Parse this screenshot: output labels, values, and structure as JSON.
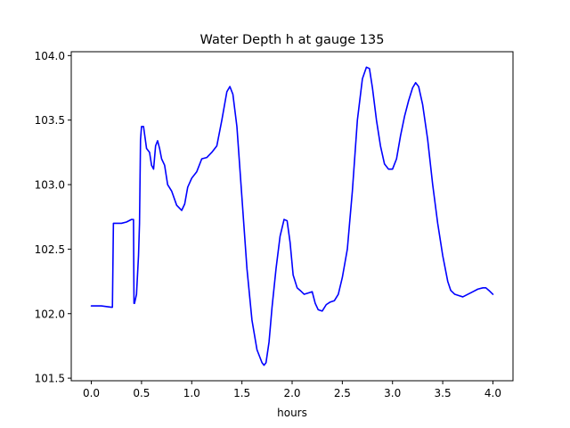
{
  "chart_data": {
    "type": "line",
    "title": "Water Depth h at gauge 135",
    "xlabel": "hours",
    "ylabel": "",
    "xlim": [
      -0.2,
      4.2
    ],
    "ylim": [
      101.48,
      104.03
    ],
    "xticks": [
      0.0,
      0.5,
      1.0,
      1.5,
      2.0,
      2.5,
      3.0,
      3.5,
      4.0
    ],
    "xtick_labels": [
      "0.0",
      "0.5",
      "1.0",
      "1.5",
      "2.0",
      "2.5",
      "3.0",
      "3.5",
      "4.0"
    ],
    "yticks": [
      101.5,
      102.0,
      102.5,
      103.0,
      103.5,
      104.0
    ],
    "ytick_labels": [
      "101.5",
      "102.0",
      "102.5",
      "103.0",
      "103.5",
      "104.0"
    ],
    "grid": false,
    "line_color": "#0000ff",
    "series": [
      {
        "x": [
          0.0,
          0.1,
          0.15,
          0.2,
          0.21,
          0.22,
          0.3,
          0.35,
          0.4,
          0.42,
          0.425,
          0.43,
          0.45,
          0.47,
          0.48,
          0.49,
          0.5,
          0.52,
          0.55,
          0.58,
          0.6,
          0.62,
          0.64,
          0.66,
          0.68,
          0.7,
          0.73,
          0.76,
          0.8,
          0.85,
          0.9,
          0.93,
          0.96,
          1.0,
          1.05,
          1.1,
          1.15,
          1.2,
          1.25,
          1.3,
          1.35,
          1.38,
          1.41,
          1.45,
          1.5,
          1.55,
          1.6,
          1.65,
          1.7,
          1.72,
          1.74,
          1.77,
          1.8,
          1.84,
          1.88,
          1.92,
          1.95,
          1.98,
          2.01,
          2.05,
          2.08,
          2.12,
          2.16,
          2.2,
          2.23,
          2.26,
          2.3,
          2.34,
          2.38,
          2.42,
          2.46,
          2.5,
          2.55,
          2.6,
          2.65,
          2.7,
          2.74,
          2.77,
          2.8,
          2.84,
          2.88,
          2.92,
          2.96,
          3.0,
          3.04,
          3.08,
          3.12,
          3.16,
          3.2,
          3.23,
          3.26,
          3.3,
          3.35,
          3.4,
          3.45,
          3.5,
          3.55,
          3.58,
          3.62,
          3.66,
          3.7,
          3.75,
          3.8,
          3.85,
          3.9,
          3.93,
          3.96,
          4.0
        ],
        "y": [
          102.06,
          102.06,
          102.055,
          102.05,
          102.05,
          102.7,
          102.7,
          102.71,
          102.73,
          102.73,
          102.08,
          102.08,
          102.15,
          102.45,
          102.7,
          103.35,
          103.45,
          103.45,
          103.28,
          103.25,
          103.15,
          103.12,
          103.3,
          103.34,
          103.28,
          103.2,
          103.15,
          103.0,
          102.95,
          102.84,
          102.8,
          102.85,
          102.98,
          103.05,
          103.1,
          103.2,
          103.21,
          103.25,
          103.3,
          103.5,
          103.72,
          103.76,
          103.7,
          103.45,
          102.9,
          102.35,
          101.95,
          101.72,
          101.62,
          101.6,
          101.62,
          101.78,
          102.05,
          102.35,
          102.6,
          102.73,
          102.72,
          102.55,
          102.3,
          102.2,
          102.18,
          102.15,
          102.16,
          102.17,
          102.08,
          102.03,
          102.02,
          102.07,
          102.09,
          102.1,
          102.15,
          102.28,
          102.5,
          102.95,
          103.5,
          103.82,
          103.91,
          103.9,
          103.75,
          103.5,
          103.3,
          103.16,
          103.12,
          103.12,
          103.2,
          103.38,
          103.53,
          103.65,
          103.75,
          103.79,
          103.76,
          103.62,
          103.35,
          103.0,
          102.7,
          102.45,
          102.25,
          102.18,
          102.15,
          102.14,
          102.13,
          102.15,
          102.17,
          102.19,
          102.2,
          102.2,
          102.18,
          102.15
        ]
      }
    ]
  }
}
